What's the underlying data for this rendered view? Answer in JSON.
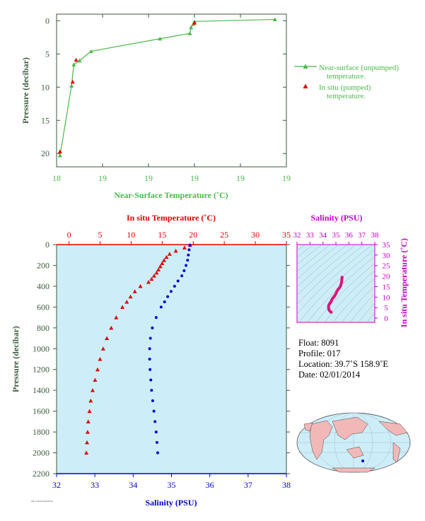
{
  "chart_data": [
    {
      "type": "line",
      "title": "",
      "xlabel": "Near-Surface Temperature (˚C)",
      "ylabel": "Pressure (decibar)",
      "xlim": [
        18.0,
        20.0
      ],
      "ylim": [
        22,
        -1
      ],
      "x_ticks": [
        "18",
        "19",
        "19",
        "19",
        "19",
        "19"
      ],
      "y_ticks": [
        "0",
        "5",
        "10",
        "15",
        "20"
      ],
      "legend": {
        "placement": "right",
        "entries": [
          {
            "line1": "Near-surface (unpumped)",
            "line2": "temperature."
          },
          {
            "line1": "In situ (pumped)",
            "line2": "temperature."
          }
        ]
      },
      "series": [
        {
          "x": [
            19.9,
            19.2,
            19.19,
            19.17,
            19.16,
            18.9,
            18.3,
            18.2,
            18.15,
            18.13,
            18.03
          ],
          "y": [
            -0.2,
            0.1,
            0.5,
            1.0,
            1.9,
            2.7,
            4.6,
            6.0,
            6.6,
            9.8,
            20.3
          ]
        },
        {
          "x": [
            19.2,
            18.17,
            18.14,
            18.03
          ],
          "y": [
            0.3,
            5.9,
            9.2,
            19.7
          ]
        }
      ],
      "colors": {
        "near_surface": "#4ab84a",
        "in_situ": "#e00000"
      }
    },
    {
      "type": "scatter",
      "ylabel": "Pressure (decibar)",
      "ylim": [
        2200,
        0
      ],
      "y_ticks": [
        "0",
        "200",
        "400",
        "600",
        "800",
        "1000",
        "1200",
        "1400",
        "1600",
        "1800",
        "2000",
        "2200"
      ],
      "top_axis": {
        "label": "In situ Temperature (˚C)",
        "range": [
          -2,
          35
        ],
        "ticks": [
          "0",
          "5",
          "10",
          "15",
          "20",
          "25",
          "30",
          "35"
        ]
      },
      "bottom_axis": {
        "label": "Salinity (PSU)",
        "range": [
          32,
          38
        ],
        "ticks": [
          "32",
          "33",
          "34",
          "35",
          "36",
          "37",
          "38"
        ]
      },
      "series": [
        {
          "pressure": [
            5,
            30,
            60,
            90,
            120,
            150,
            180,
            210,
            240,
            270,
            300,
            330,
            360,
            400,
            450,
            500,
            550,
            600,
            700,
            800,
            900,
            1000,
            1100,
            1200,
            1300,
            1400,
            1500,
            1600,
            1700,
            1800,
            1900,
            2000
          ],
          "values": [
            19.5,
            18.6,
            17.2,
            16.2,
            15.7,
            15.3,
            15.0,
            14.7,
            14.4,
            14.1,
            13.7,
            13.3,
            12.8,
            11.5,
            10.6,
            9.9,
            9.3,
            8.6,
            7.6,
            6.8,
            6.1,
            5.5,
            5.0,
            4.6,
            4.2,
            3.8,
            3.5,
            3.3,
            3.1,
            3.0,
            2.9,
            2.8
          ]
        },
        {
          "pressure": [
            5,
            50,
            100,
            150,
            200,
            250,
            300,
            350,
            400,
            450,
            500,
            550,
            600,
            700,
            800,
            900,
            1000,
            1100,
            1200,
            1300,
            1400,
            1500,
            1600,
            1700,
            1800,
            1900,
            2000
          ],
          "values": [
            35.48,
            35.46,
            35.44,
            35.42,
            35.38,
            35.33,
            35.27,
            35.17,
            35.08,
            34.99,
            34.9,
            34.82,
            34.73,
            34.6,
            34.5,
            34.45,
            34.43,
            34.43,
            34.44,
            34.46,
            34.48,
            34.51,
            34.54,
            34.57,
            34.6,
            34.62,
            34.64
          ]
        }
      ],
      "colors": {
        "temperature": "#e00000",
        "salinity": "#0000d0",
        "background": "#cdeef8"
      }
    },
    {
      "type": "line",
      "title": "Salinity (PSU)",
      "ylabel": "In situ Temperature (˚C)",
      "xlim": [
        32,
        38
      ],
      "ylim": [
        -2,
        35
      ],
      "x_ticks": [
        "32",
        "33",
        "34",
        "35",
        "36",
        "37",
        "38"
      ],
      "y_ticks": [
        "0",
        "5",
        "10",
        "15",
        "20",
        "25",
        "30",
        "35"
      ],
      "series": [
        {
          "x": [
            35.48,
            35.44,
            35.38,
            35.33,
            35.27,
            35.17,
            35.08,
            34.99,
            34.9,
            34.82,
            34.73,
            34.6,
            34.5,
            34.45,
            34.43,
            34.44,
            34.48,
            34.54,
            34.6,
            34.64
          ],
          "y": [
            19.5,
            17.2,
            15.7,
            15.0,
            14.4,
            13.7,
            12.8,
            11.5,
            10.6,
            9.9,
            9.3,
            7.6,
            6.8,
            6.1,
            5.5,
            4.6,
            3.8,
            3.3,
            3.0,
            2.8
          ]
        }
      ],
      "colors": {
        "curve": "#e0107a",
        "axis": "#c000c0",
        "background": "#cdeef8"
      }
    }
  ],
  "info": {
    "float": "Float:  8091",
    "profile": "Profile:  017",
    "location": "Location:  39.7˚S  158.9˚E",
    "date": "Date:  02/01/2014"
  },
  "footer_tag": "ZQ 7-4-2014  2014-07-04"
}
